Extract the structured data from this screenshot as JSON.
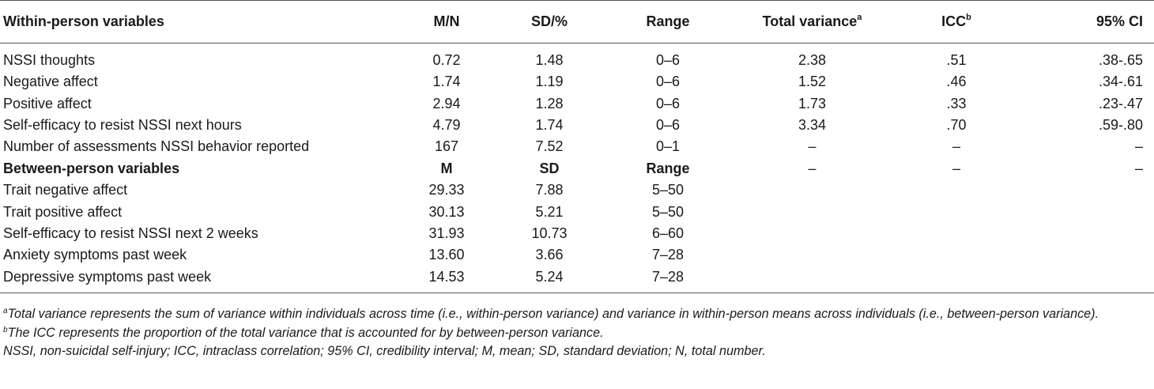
{
  "header": {
    "label": "Within-person variables",
    "mn": "M/N",
    "sd": "SD/%",
    "range": "Range",
    "total_variance": "Total variance",
    "total_variance_sup": "a",
    "icc": "ICC",
    "icc_sup": "b",
    "ci": "95% CI"
  },
  "within_rows": [
    {
      "label": "NSSI thoughts",
      "mn": "0.72",
      "sd": "1.48",
      "range": "0–6",
      "tv": "2.38",
      "icc": ".51",
      "ci": ".38-.65"
    },
    {
      "label": "Negative affect",
      "mn": "1.74",
      "sd": "1.19",
      "range": "0–6",
      "tv": "1.52",
      "icc": ".46",
      "ci": ".34-.61"
    },
    {
      "label": "Positive affect",
      "mn": "2.94",
      "sd": "1.28",
      "range": "0–6",
      "tv": "1.73",
      "icc": ".33",
      "ci": ".23-.47"
    },
    {
      "label": "Self-efficacy to resist NSSI next hours",
      "mn": "4.79",
      "sd": "1.74",
      "range": "0–6",
      "tv": "3.34",
      "icc": ".70",
      "ci": ".59-.80"
    },
    {
      "label": "Number of assessments NSSI behavior reported",
      "mn": "167",
      "sd": "7.52",
      "range": "0–1",
      "tv": "–",
      "icc": "–",
      "ci": "–"
    }
  ],
  "between_header": {
    "label": "Between-person variables",
    "mn": "M",
    "sd": "SD",
    "range": "Range",
    "tv": "–",
    "icc": "–",
    "ci": "–"
  },
  "between_rows": [
    {
      "label": "Trait negative affect",
      "mn": "29.33",
      "sd": "7.88",
      "range": "5–50"
    },
    {
      "label": "Trait positive affect",
      "mn": "30.13",
      "sd": "5.21",
      "range": "5–50"
    },
    {
      "label": "Self-efficacy to resist NSSI next 2 weeks",
      "mn": "31.93",
      "sd": "10.73",
      "range": "6–60"
    },
    {
      "label": "Anxiety symptoms past week",
      "mn": "13.60",
      "sd": "3.66",
      "range": "7–28"
    },
    {
      "label": "Depressive symptoms past week",
      "mn": "14.53",
      "sd": "5.24",
      "range": "7–28"
    }
  ],
  "notes": {
    "a_marker": "a",
    "a_text": "Total variance represents the sum of variance within individuals across time (i.e., within-person variance) and variance in within-person means across individuals (i.e., between-person variance).",
    "b_marker": "b",
    "b_text": "The ICC represents the proportion of the total variance that is accounted for by between-person variance.",
    "abbreviations": "NSSI, non-suicidal self-injury; ICC, intraclass correlation; 95% CI, credibility interval; M, mean; SD, standard deviation; N, total number."
  }
}
